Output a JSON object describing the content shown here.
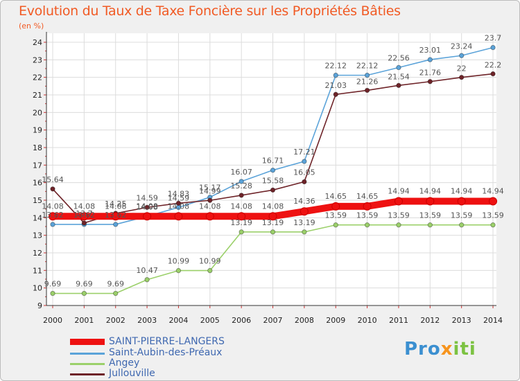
{
  "title": "Evolution du Taux de Taxe Foncière sur les Propriétés Bâties",
  "subtitle": "(en %)",
  "brand": {
    "p1": "Pro",
    "p2": "x",
    "p3": "iti"
  },
  "chart_data": {
    "type": "line",
    "title": "Evolution du Taux de Taxe Foncière sur les Propriétés Bâties",
    "ylabel": "(en %)",
    "xlabel": "",
    "ylim": [
      9,
      24
    ],
    "yticks": [
      9,
      10,
      11,
      12,
      13,
      14,
      15,
      16,
      17,
      18,
      19,
      20,
      21,
      22,
      23,
      24
    ],
    "categories": [
      "2000",
      "2001",
      "2002",
      "2003",
      "2004",
      "2005",
      "2006",
      "2007",
      "2008",
      "2009",
      "2010",
      "2011",
      "2012",
      "2013",
      "2014"
    ],
    "series": [
      {
        "name": "SAINT-PIERRE-LANGERS",
        "color": "#ee1111",
        "values": [
          14.08,
          14.08,
          14.08,
          14.08,
          14.08,
          14.08,
          14.08,
          14.08,
          14.36,
          14.65,
          14.65,
          14.94,
          14.94,
          14.94,
          14.94
        ],
        "labels": [
          "14.08",
          "14.08",
          "14.08",
          "14.08",
          "14.08",
          "14.08",
          "14.08",
          "14.08",
          "14.36",
          "14.65",
          "14.65",
          "14.94",
          "14.94",
          "14.94",
          "14.94"
        ]
      },
      {
        "name": "Saint-Aubin-des-Préaux",
        "color": "#5ba3d9",
        "values": [
          13.62,
          13.62,
          13.62,
          14.08,
          14.59,
          15.17,
          16.07,
          16.71,
          17.21,
          22.12,
          22.12,
          22.56,
          23.01,
          23.24,
          23.7
        ],
        "labels": [
          "13.62",
          "13.62",
          "13.62",
          "14.08",
          "14.59",
          "15.17",
          "16.07",
          "16.71",
          "17.21",
          "22.12",
          "22.12",
          "22.56",
          "23.01",
          "23.24",
          "23.7"
        ]
      },
      {
        "name": "Angey",
        "color": "#9bd06a",
        "values": [
          9.69,
          9.69,
          9.69,
          10.47,
          10.99,
          10.99,
          13.19,
          13.19,
          13.19,
          13.59,
          13.59,
          13.59,
          13.59,
          13.59,
          13.59
        ],
        "labels": [
          "9.69",
          "9.69",
          "9.69",
          "10.47",
          "10.99",
          "10.99",
          "13.19",
          "13.19",
          "13.19",
          "13.59",
          "13.59",
          "13.59",
          "13.59",
          "13.59",
          "13.59"
        ]
      },
      {
        "name": "Jullouville",
        "color": "#6e2328",
        "values": [
          15.64,
          13.7,
          14.25,
          14.59,
          14.83,
          14.99,
          15.28,
          15.58,
          16.05,
          21.03,
          21.26,
          21.54,
          21.76,
          22,
          22.2
        ],
        "labels": [
          "15.64",
          "13.7",
          "14.25",
          "14.59",
          "14.83",
          "14.99",
          "15.28",
          "15.58",
          "16.05",
          "21.03",
          "21.26",
          "21.54",
          "21.76",
          "22",
          "22.2"
        ]
      }
    ]
  }
}
